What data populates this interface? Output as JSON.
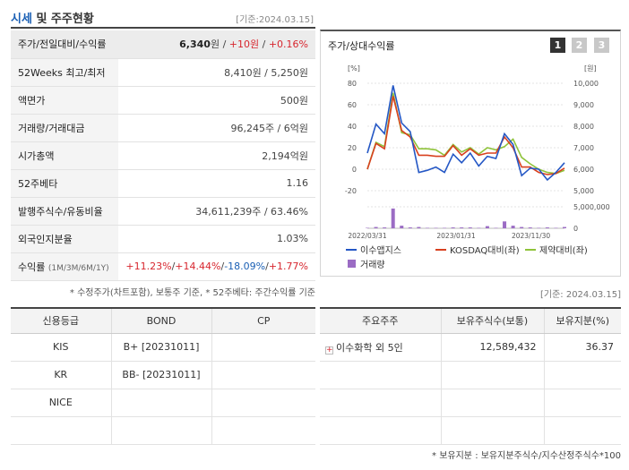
{
  "header": {
    "title_a": "시세",
    "title_b": " 및 주주현황",
    "date": "[기준:2024.03.15]"
  },
  "price_rows": [
    {
      "label": "주가/전일대비/수익률",
      "v1": "6,340",
      "v1_unit": "원",
      "sep1": " / ",
      "v2": "+10원",
      "sep2": " / ",
      "v3": "+0.16%"
    },
    {
      "label": "52Weeks 최고/최저",
      "value": "8,410원 / 5,250원"
    },
    {
      "label": "액면가",
      "value": "500원"
    },
    {
      "label": "거래량/거래대금",
      "value": "96,245주 / 6억원"
    },
    {
      "label": "시가총액",
      "value": "2,194억원"
    },
    {
      "label": "52주베타",
      "value": "1.16"
    },
    {
      "label": "발행주식수/유동비율",
      "value": "34,611,239주 / 63.46%"
    },
    {
      "label": "외국인지분율",
      "value": "1.03%"
    },
    {
      "label": "수익률",
      "label_sub": "(1M/3M/6M/1Y)",
      "r1": "+11.23%",
      "r2": "+14.44%",
      "r3": "-18.09%",
      "r4": "+1.77%",
      "sep": "/"
    }
  ],
  "price_note": "* 수정주가(차트포함), 보통주 기준, * 52주베타: 주간수익률 기준",
  "chart_panel": {
    "title": "주가/상대수익률",
    "pages": [
      "1",
      "2",
      "3"
    ],
    "active_page": 0
  },
  "chart_data": {
    "type": "line",
    "left_unit": "[%]",
    "right_unit": "[원]",
    "left_ticks": [
      "80",
      "60",
      "40",
      "20",
      "0",
      "-20"
    ],
    "right_ticks": [
      "10,000",
      "9,000",
      "8,000",
      "7,000",
      "6,000",
      "5,000"
    ],
    "volume_tick": "5,000,000",
    "volume_zero": "0",
    "x_ticks": [
      "2022/03/31",
      "2023/01/31",
      "2023/11/30"
    ],
    "ylim_left": [
      -20,
      80
    ],
    "series": [
      {
        "name": "이수앱지스",
        "color": "#2457c5",
        "values": [
          15,
          42,
          33,
          78,
          43,
          35,
          -3,
          -1,
          2,
          -3,
          14,
          6,
          15,
          3,
          12,
          10,
          33,
          23,
          -6,
          1,
          0,
          -10,
          -3,
          6
        ]
      },
      {
        "name": "KOSDAQ대비(좌)",
        "color": "#d8401f",
        "values": [
          0,
          24,
          19,
          68,
          36,
          30,
          13,
          13,
          12,
          12,
          22,
          13,
          19,
          13,
          15,
          15,
          30,
          20,
          2,
          2,
          -3,
          -5,
          -4,
          1
        ]
      },
      {
        "name": "제약대비(좌)",
        "color": "#8fc33a",
        "values": [
          0,
          25,
          21,
          71,
          34,
          32,
          19,
          19,
          18,
          13,
          23,
          16,
          20,
          14,
          20,
          18,
          21,
          28,
          11,
          5,
          0,
          -3,
          -4,
          -1
        ]
      }
    ],
    "volume": {
      "name": "거래량",
      "color": "#9b6cc4",
      "values": [
        0.1,
        0.3,
        0.2,
        4.6,
        0.6,
        0.2,
        0.3,
        0.1,
        0.1,
        0.1,
        0.2,
        0.2,
        0.2,
        0.1,
        0.5,
        0.1,
        1.6,
        0.6,
        0.3,
        0.2,
        0.1,
        0.2,
        0.1,
        0.3
      ],
      "max": 5.0
    }
  },
  "credit_table": {
    "headers": [
      "신용등급",
      "BOND",
      "CP"
    ],
    "rows": [
      [
        "KIS",
        "B+  [20231011]",
        ""
      ],
      [
        "KR",
        "BB-  [20231011]",
        ""
      ],
      [
        "NICE",
        "",
        ""
      ],
      [
        "",
        "",
        ""
      ]
    ]
  },
  "shareholder": {
    "date": "[기준: 2024.03.15]",
    "headers": [
      "주요주주",
      "보유주식수(보통)",
      "보유지분(%)"
    ],
    "rows": [
      {
        "name": "이수화학 외 5인",
        "shares": "12,589,432",
        "pct": "36.37"
      },
      {
        "name": "",
        "shares": "",
        "pct": ""
      },
      {
        "name": "",
        "shares": "",
        "pct": ""
      },
      {
        "name": "",
        "shares": "",
        "pct": ""
      }
    ],
    "note": "* 보유지분 : 보유지분주식수/지수산정주식수*100"
  }
}
